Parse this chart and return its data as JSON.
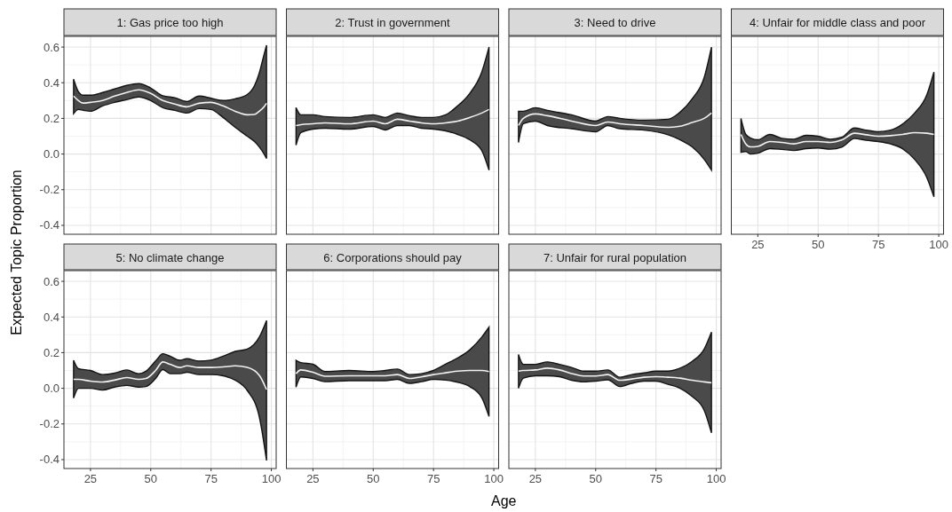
{
  "chart_data": [
    {
      "type": "line",
      "title": "1: Gas price too high",
      "ylabel": "Expected Topic Proportion",
      "xlim": [
        14,
        102
      ],
      "ylim": [
        -0.45,
        0.66
      ],
      "xticks": [
        25,
        50,
        75,
        100
      ],
      "yticks": [
        -0.4,
        -0.2,
        {
          "value": 0,
          "label": "0.0"
        },
        0.2,
        0.4,
        0.6
      ],
      "grid": true,
      "tick_labels": "y",
      "x": [
        18,
        20,
        22,
        25,
        30,
        35,
        40,
        45,
        50,
        55,
        60,
        65,
        70,
        75,
        80,
        85,
        90,
        93,
        95,
        97,
        98
      ],
      "series": [
        {
          "color": "#f2f2f2",
          "values": [
            0.325,
            0.3,
            0.286,
            0.29,
            0.3,
            0.325,
            0.345,
            0.36,
            0.34,
            0.3,
            0.28,
            0.265,
            0.285,
            0.29,
            0.27,
            0.24,
            0.22,
            0.222,
            0.24,
            0.265,
            0.285
          ],
          "upper": [
            0.42,
            0.35,
            0.33,
            0.33,
            0.345,
            0.365,
            0.385,
            0.395,
            0.37,
            0.327,
            0.316,
            0.295,
            0.325,
            0.313,
            0.3,
            0.31,
            0.334,
            0.384,
            0.455,
            0.56,
            0.61
          ],
          "lower": [
            0.227,
            0.25,
            0.245,
            0.24,
            0.27,
            0.29,
            0.305,
            0.32,
            0.3,
            0.26,
            0.245,
            0.23,
            0.255,
            0.25,
            0.205,
            0.15,
            0.1,
            0.07,
            0.04,
            0,
            -0.025
          ]
        }
      ]
    },
    {
      "type": "line",
      "title": "2: Trust in government",
      "xlim": [
        14,
        102
      ],
      "ylim": [
        -0.45,
        0.66
      ],
      "xticks": [
        25,
        50,
        75,
        100
      ],
      "yticks": [
        -0.4,
        -0.2,
        0,
        0.2,
        0.4,
        0.6
      ],
      "grid": true,
      "tick_labels": false,
      "x": [
        18,
        20,
        25,
        30,
        40,
        50,
        55,
        60,
        65,
        70,
        75,
        80,
        85,
        90,
        95,
        98
      ],
      "series": [
        {
          "color": "#f2f2f2",
          "values": [
            0.16,
            0.165,
            0.17,
            0.175,
            0.17,
            0.185,
            0.17,
            0.195,
            0.185,
            0.175,
            0.17,
            0.175,
            0.185,
            0.205,
            0.23,
            0.25
          ],
          "upper": [
            0.26,
            0.22,
            0.22,
            0.21,
            0.205,
            0.22,
            0.205,
            0.23,
            0.215,
            0.205,
            0.205,
            0.22,
            0.27,
            0.34,
            0.46,
            0.6
          ],
          "lower": [
            0.05,
            0.12,
            0.14,
            0.145,
            0.14,
            0.155,
            0.135,
            0.16,
            0.16,
            0.145,
            0.14,
            0.13,
            0.11,
            0.08,
            0.02,
            -0.09
          ]
        }
      ]
    },
    {
      "type": "line",
      "title": "3: Need to drive",
      "xlim": [
        14,
        102
      ],
      "ylim": [
        -0.45,
        0.66
      ],
      "xticks": [
        25,
        50,
        75,
        100
      ],
      "yticks": [
        -0.4,
        -0.2,
        0,
        0.2,
        0.4,
        0.6
      ],
      "grid": true,
      "tick_labels": false,
      "x": [
        18,
        20,
        25,
        30,
        40,
        50,
        55,
        60,
        70,
        80,
        85,
        90,
        95,
        98
      ],
      "series": [
        {
          "color": "#f2f2f2",
          "values": [
            0.16,
            0.2,
            0.225,
            0.215,
            0.185,
            0.16,
            0.18,
            0.17,
            0.16,
            0.15,
            0.156,
            0.177,
            0.2,
            0.23
          ],
          "upper": [
            0.24,
            0.24,
            0.26,
            0.245,
            0.22,
            0.185,
            0.21,
            0.2,
            0.19,
            0.195,
            0.235,
            0.31,
            0.43,
            0.6
          ],
          "lower": [
            0.065,
            0.17,
            0.185,
            0.16,
            0.142,
            0.125,
            0.16,
            0.142,
            0.134,
            0.108,
            0.08,
            0.04,
            -0.03,
            -0.09
          ]
        }
      ]
    },
    {
      "type": "line",
      "title": "4: Unfair for middle class and poor",
      "xlim": [
        14,
        102
      ],
      "ylim": [
        -0.45,
        0.66
      ],
      "xticks": [
        25,
        50,
        75,
        100
      ],
      "yticks": [
        -0.4,
        -0.2,
        0,
        0.2,
        0.4,
        0.6
      ],
      "grid": true,
      "tick_labels": "x",
      "x": [
        18,
        20,
        22,
        25,
        30,
        35,
        40,
        45,
        50,
        55,
        60,
        65,
        70,
        75,
        80,
        85,
        90,
        95,
        98
      ],
      "series": [
        {
          "color": "#f2f2f2",
          "values": [
            0.11,
            0.057,
            0.04,
            0.043,
            0.07,
            0.065,
            0.057,
            0.07,
            0.07,
            0.065,
            0.08,
            0.117,
            0.108,
            0.1,
            0.103,
            0.11,
            0.12,
            0.117,
            0.11
          ],
          "upper": [
            0.2,
            0.11,
            0.09,
            0.08,
            0.11,
            0.088,
            0.083,
            0.105,
            0.1,
            0.083,
            0.095,
            0.146,
            0.134,
            0.125,
            0.134,
            0.168,
            0.23,
            0.33,
            0.46
          ],
          "lower": [
            0.01,
            0.014,
            0,
            0.005,
            0.03,
            0.026,
            0.02,
            0.03,
            0.034,
            0.027,
            0.04,
            0.087,
            0.077,
            0.07,
            0.057,
            0.03,
            -0.03,
            -0.13,
            -0.24
          ]
        }
      ]
    },
    {
      "type": "line",
      "title": "5: No climate change",
      "xlim": [
        14,
        102
      ],
      "ylim": [
        -0.45,
        0.66
      ],
      "xticks": [
        25,
        50,
        75,
        100
      ],
      "yticks": [
        -0.4,
        -0.2,
        {
          "value": 0,
          "label": "0.0"
        },
        0.2,
        0.4,
        0.6
      ],
      "grid": true,
      "x": [
        18,
        20,
        25,
        30,
        35,
        40,
        45,
        48,
        52,
        55,
        58,
        62,
        65,
        70,
        75,
        80,
        85,
        90,
        95,
        98
      ],
      "series": [
        {
          "color": "#f2f2f2",
          "values": [
            0.05,
            0.05,
            0.04,
            0.035,
            0.046,
            0.06,
            0.05,
            0.055,
            0.1,
            0.148,
            0.135,
            0.117,
            0.126,
            0.117,
            0.117,
            0.12,
            0.126,
            0.117,
            0.073,
            -0.007
          ],
          "upper": [
            0.157,
            0.11,
            0.1,
            0.077,
            0.085,
            0.103,
            0.082,
            0.096,
            0.153,
            0.194,
            0.18,
            0.157,
            0.166,
            0.153,
            0.158,
            0.18,
            0.207,
            0.22,
            0.287,
            0.38
          ],
          "lower": [
            -0.055,
            0,
            0,
            -0.01,
            0.007,
            0.016,
            0.007,
            0.01,
            0.055,
            0.105,
            0.082,
            0.082,
            0.09,
            0.077,
            0.077,
            0.07,
            0.046,
            -0.012,
            -0.16,
            -0.405
          ]
        }
      ]
    },
    {
      "type": "line",
      "title": "6: Corporations should pay",
      "xlabel": "Age",
      "xlim": [
        14,
        102
      ],
      "ylim": [
        -0.45,
        0.66
      ],
      "xticks": [
        25,
        50,
        75,
        100
      ],
      "yticks": [
        -0.4,
        -0.2,
        0,
        0.2,
        0.4,
        0.6
      ],
      "grid": true,
      "tick_labels": "x",
      "x": [
        18,
        20,
        25,
        30,
        40,
        50,
        55,
        60,
        65,
        70,
        75,
        80,
        85,
        90,
        95,
        98
      ],
      "series": [
        {
          "color": "#f2f2f2",
          "values": [
            0.082,
            0.103,
            0.09,
            0.068,
            0.07,
            0.07,
            0.07,
            0.077,
            0.055,
            0.064,
            0.077,
            0.087,
            0.096,
            0.1,
            0.1,
            0.094
          ],
          "upper": [
            0.157,
            0.144,
            0.135,
            0.094,
            0.1,
            0.094,
            0.1,
            0.108,
            0.077,
            0.082,
            0.1,
            0.135,
            0.17,
            0.215,
            0.287,
            0.343
          ],
          "lower": [
            0.007,
            0.064,
            0.055,
            0.037,
            0.043,
            0.043,
            0.043,
            0.05,
            0.028,
            0.037,
            0.05,
            0.046,
            0.034,
            0.01,
            -0.052,
            -0.158
          ]
        }
      ]
    },
    {
      "type": "line",
      "title": "7: Unfair for rural population",
      "xlim": [
        14,
        102
      ],
      "ylim": [
        -0.45,
        0.66
      ],
      "xticks": [
        25,
        50,
        75,
        100
      ],
      "yticks": [
        -0.4,
        -0.2,
        0,
        0.2,
        0.4,
        0.6
      ],
      "grid": true,
      "tick_labels": "x",
      "x": [
        18,
        20,
        25,
        30,
        35,
        40,
        45,
        50,
        55,
        60,
        65,
        70,
        75,
        80,
        85,
        90,
        95,
        98
      ],
      "series": [
        {
          "color": "#f2f2f2",
          "values": [
            0.096,
            0.1,
            0.103,
            0.113,
            0.103,
            0.083,
            0.069,
            0.069,
            0.077,
            0.045,
            0.052,
            0.062,
            0.065,
            0.062,
            0.057,
            0.045,
            0.036,
            0.031
          ],
          "upper": [
            0.19,
            0.134,
            0.134,
            0.148,
            0.134,
            0.117,
            0.096,
            0.096,
            0.103,
            0.062,
            0.077,
            0.086,
            0.096,
            0.096,
            0.113,
            0.151,
            0.22,
            0.315
          ],
          "lower": [
            0,
            0.057,
            0.07,
            0.07,
            0.065,
            0.045,
            0.036,
            0.04,
            0.048,
            0.01,
            0.028,
            0.04,
            0.04,
            0.022,
            0,
            -0.046,
            -0.124,
            -0.25
          ]
        }
      ]
    }
  ]
}
